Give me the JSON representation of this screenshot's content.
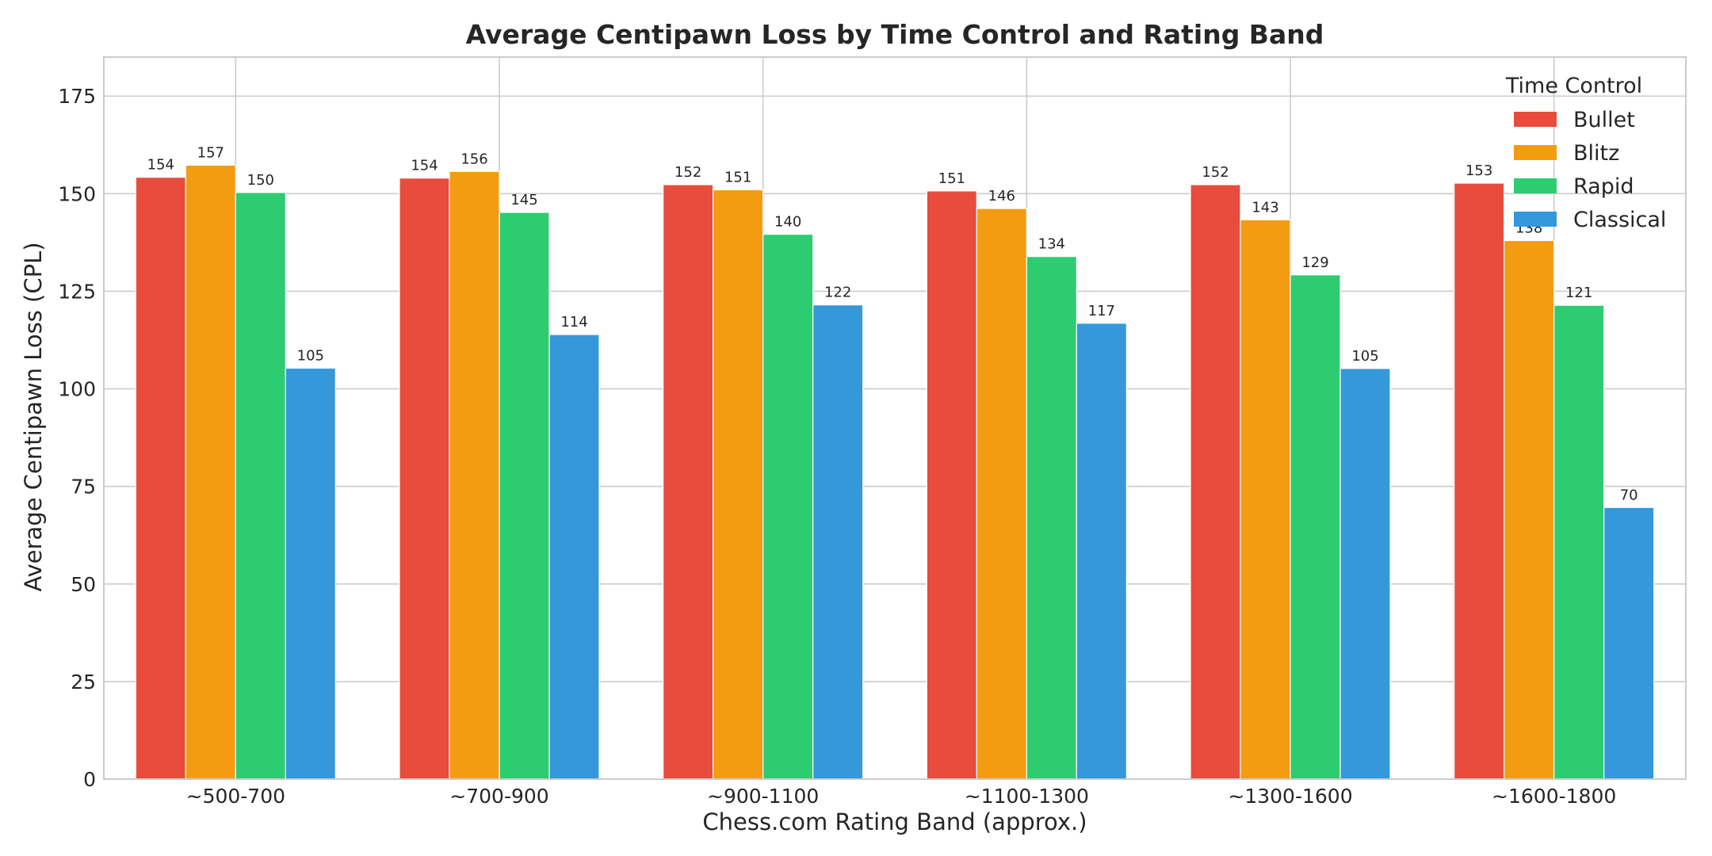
{
  "chart_data": {
    "type": "bar",
    "title": "Average Centipawn Loss by Time Control and Rating Band",
    "xlabel": "Chess.com Rating Band (approx.)",
    "ylabel": "Average Centipawn Loss (CPL)",
    "ylim": [
      0,
      185
    ],
    "yticks": [
      0,
      25,
      50,
      75,
      100,
      125,
      150,
      175
    ],
    "grid": true,
    "legend_title": "Time Control",
    "legend_position": "top-right",
    "categories": [
      "~500-700",
      "~700-900",
      "~900-1100",
      "~1100-1300",
      "~1300-1600",
      "~1600-1800"
    ],
    "series": [
      {
        "name": "Bullet",
        "color": "#e74c3c",
        "values": [
          154.2,
          154.0,
          152.3,
          150.7,
          152.3,
          152.7
        ],
        "labels": [
          "154",
          "154",
          "152",
          "151",
          "152",
          "153"
        ]
      },
      {
        "name": "Blitz",
        "color": "#f39c12",
        "values": [
          157.3,
          155.7,
          151.0,
          146.2,
          143.3,
          138.0
        ],
        "labels": [
          "157",
          "156",
          "151",
          "146",
          "143",
          "138"
        ]
      },
      {
        "name": "Rapid",
        "color": "#2ecc71",
        "values": [
          150.3,
          145.2,
          139.6,
          133.9,
          129.2,
          121.4
        ],
        "labels": [
          "150",
          "145",
          "140",
          "134",
          "129",
          "121"
        ]
      },
      {
        "name": "Classical",
        "color": "#3498db",
        "values": [
          105.3,
          113.9,
          121.5,
          116.8,
          105.2,
          69.6
        ],
        "labels": [
          "105",
          "114",
          "122",
          "117",
          "105",
          "70"
        ]
      }
    ]
  }
}
